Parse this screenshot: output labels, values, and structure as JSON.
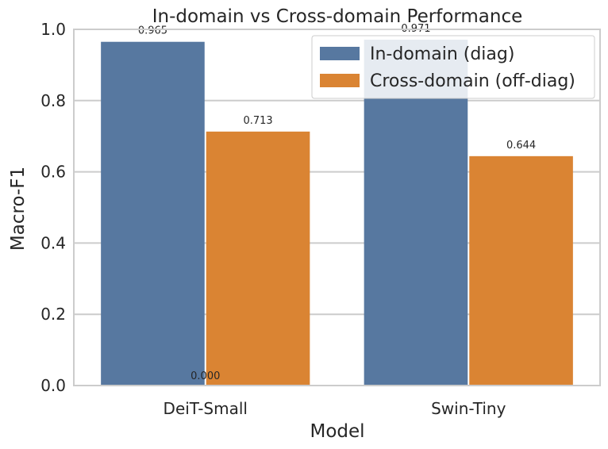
{
  "chart_data": {
    "type": "bar",
    "title": "In-domain vs Cross-domain Performance",
    "xlabel": "Model",
    "ylabel": "Macro-F1",
    "categories": [
      "DeiT-Small",
      "Swin-Tiny"
    ],
    "series": [
      {
        "name": "In-domain (diag)",
        "values": [
          0.965,
          0.971
        ],
        "color": "#5778a0"
      },
      {
        "name": "Cross-domain (off-diag)",
        "values": [
          0.713,
          0.644
        ],
        "color": "#da8433"
      }
    ],
    "data_labels": [
      [
        "0.965",
        "0.971"
      ],
      [
        "0.713",
        "0.644"
      ]
    ],
    "extra_label": "0.000",
    "ylim": [
      0,
      1.0
    ],
    "yticks": [
      "0.0",
      "0.2",
      "0.4",
      "0.6",
      "0.8",
      "1.0"
    ],
    "grid": true,
    "legend_position": "top-right"
  }
}
